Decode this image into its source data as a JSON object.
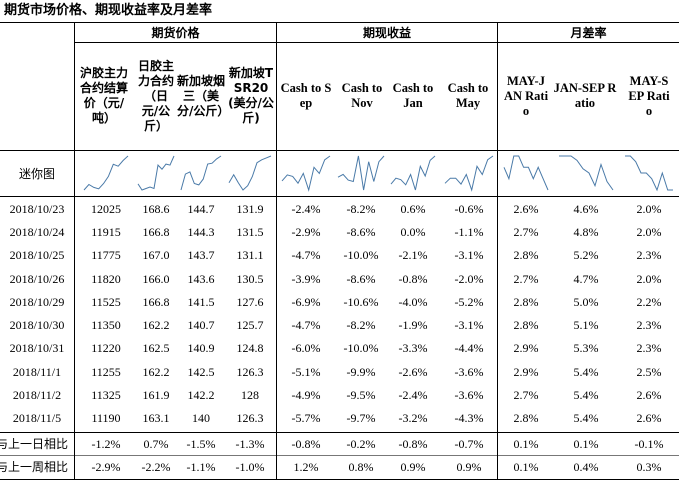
{
  "title": "期货市场价格、期现收益率及月差率",
  "groups": {
    "futures": "期货价格",
    "basis": "期现收益",
    "spread": "月差率"
  },
  "columns": [
    "沪胶主力合约结算价（元/吨）",
    "日胶主力合约（日元/公斤）",
    "新加坡烟三（美分/公斤）",
    "新加坡TSR20(美分/公斤)",
    "Cash to Sep",
    "Cash to Nov",
    "Cash to Jan",
    "Cash to May",
    "MAY-JAN Ratio",
    "JAN-SEP Ratio",
    "MAY-SEP Ratio"
  ],
  "sparkline_label": "迷你图",
  "rows": [
    {
      "date": "2018/10/23",
      "values": [
        "12025",
        "168.6",
        "144.7",
        "131.9",
        "-2.4%",
        "-8.2%",
        "0.6%",
        "-0.6%",
        "2.6%",
        "4.6%",
        "2.0%"
      ]
    },
    {
      "date": "2018/10/24",
      "values": [
        "11915",
        "166.8",
        "144.3",
        "131.5",
        "-2.9%",
        "-8.6%",
        "0.0%",
        "-1.1%",
        "2.7%",
        "4.8%",
        "2.0%"
      ]
    },
    {
      "date": "2018/10/25",
      "values": [
        "11775",
        "167.0",
        "143.7",
        "131.1",
        "-4.7%",
        "-10.0%",
        "-2.1%",
        "-3.1%",
        "2.8%",
        "5.2%",
        "2.3%"
      ]
    },
    {
      "date": "2018/10/26",
      "values": [
        "11820",
        "166.0",
        "143.6",
        "130.5",
        "-3.9%",
        "-8.6%",
        "-0.8%",
        "-2.0%",
        "2.7%",
        "4.7%",
        "2.0%"
      ]
    },
    {
      "date": "2018/10/29",
      "values": [
        "11525",
        "166.8",
        "141.5",
        "127.6",
        "-6.9%",
        "-10.6%",
        "-4.0%",
        "-5.2%",
        "2.8%",
        "5.0%",
        "2.2%"
      ]
    },
    {
      "date": "2018/10/30",
      "values": [
        "11350",
        "162.2",
        "140.7",
        "125.7",
        "-4.7%",
        "-8.2%",
        "-1.9%",
        "-3.1%",
        "2.8%",
        "5.1%",
        "2.3%"
      ]
    },
    {
      "date": "2018/10/31",
      "values": [
        "11220",
        "162.5",
        "140.9",
        "124.8",
        "-6.0%",
        "-10.0%",
        "-3.3%",
        "-4.4%",
        "2.9%",
        "5.3%",
        "2.3%"
      ]
    },
    {
      "date": "2018/11/1",
      "values": [
        "11255",
        "162.2",
        "142.5",
        "126.3",
        "-5.1%",
        "-9.9%",
        "-2.6%",
        "-3.6%",
        "2.9%",
        "5.4%",
        "2.5%"
      ]
    },
    {
      "date": "2018/11/2",
      "values": [
        "11325",
        "161.9",
        "142.2",
        "128",
        "-4.9%",
        "-9.5%",
        "-2.4%",
        "-3.6%",
        "2.7%",
        "5.4%",
        "2.6%"
      ]
    },
    {
      "date": "2018/11/5",
      "values": [
        "11190",
        "163.1",
        "140",
        "126.3",
        "-5.7%",
        "-9.7%",
        "-3.2%",
        "-4.3%",
        "2.8%",
        "5.4%",
        "2.6%"
      ]
    }
  ],
  "summary": [
    {
      "label": "与上一日相比",
      "values": [
        "-1.2%",
        "0.7%",
        "-1.5%",
        "-1.3%",
        "-0.8%",
        "-0.2%",
        "-0.8%",
        "-0.7%",
        "0.1%",
        "0.1%",
        "-0.1%"
      ]
    },
    {
      "label": "与上一周相比",
      "values": [
        "-2.9%",
        "-2.2%",
        "-1.1%",
        "-1.0%",
        "1.2%",
        "0.8%",
        "0.9%",
        "0.9%",
        "0.1%",
        "0.4%",
        "0.3%"
      ]
    }
  ],
  "sparkline_color": "#4a7aa8"
}
